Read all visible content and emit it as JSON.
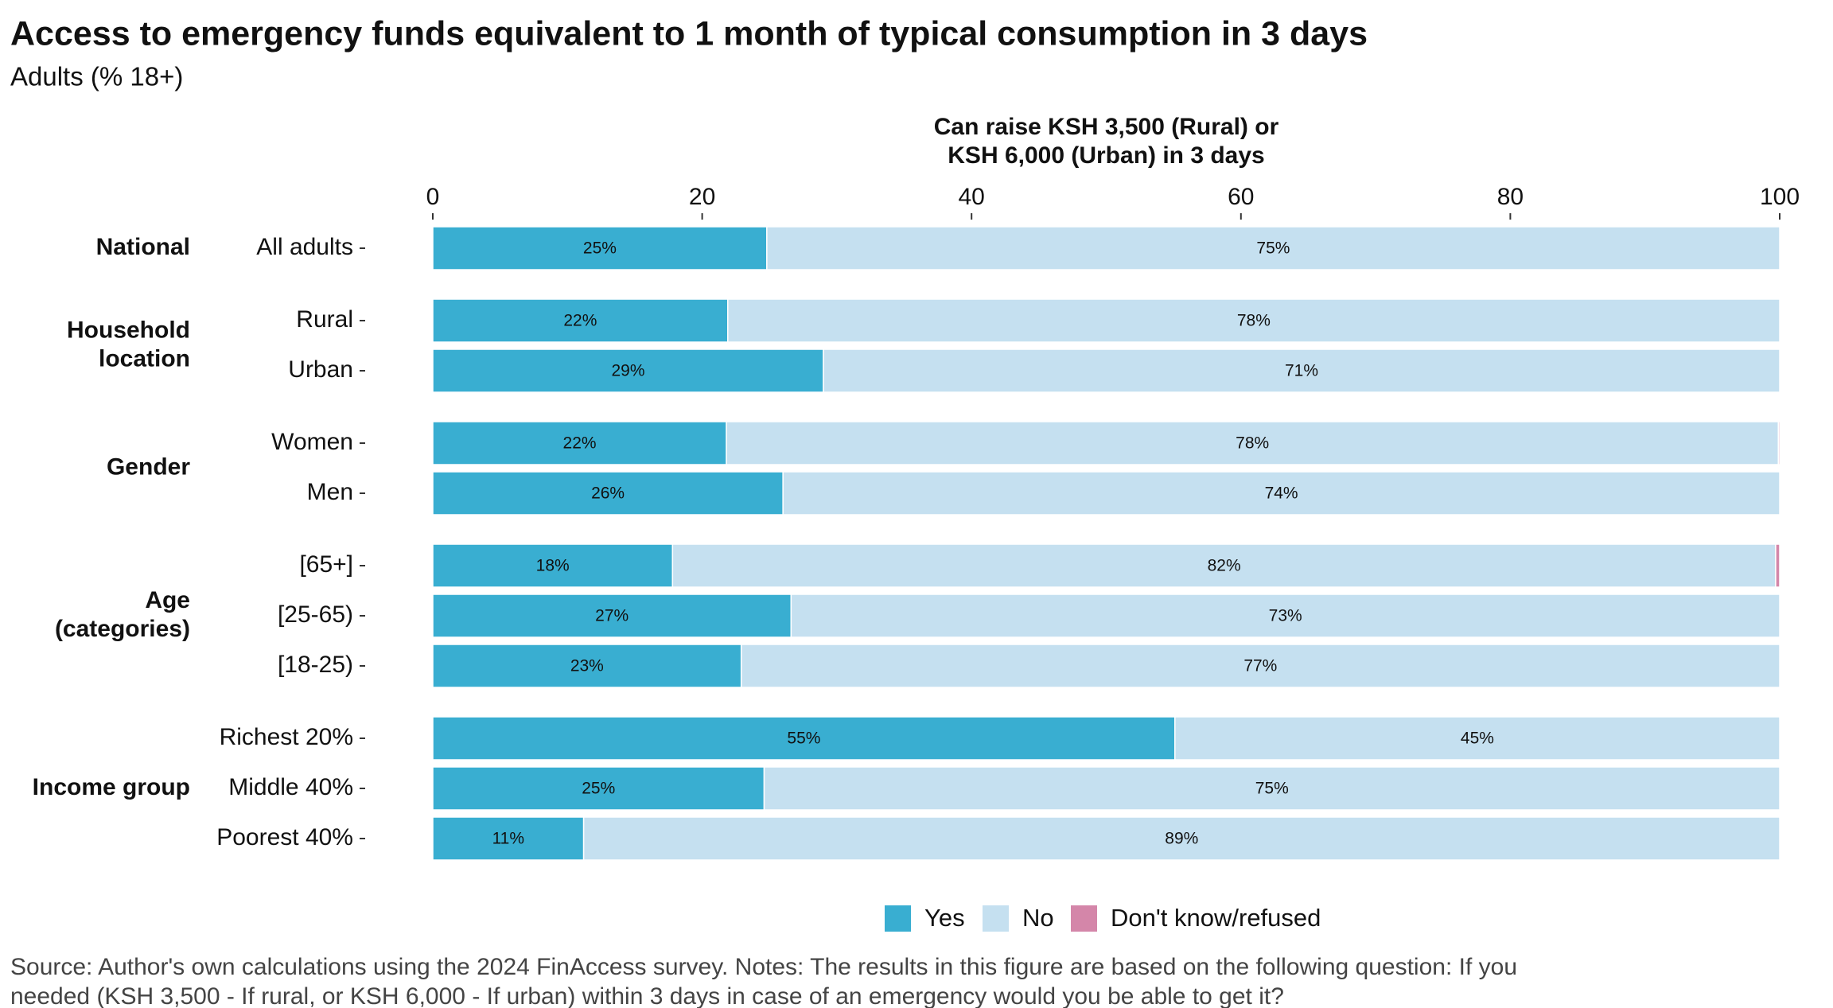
{
  "chart_data": {
    "type": "stacked-bar-horizontal",
    "title": "Access to emergency funds equivalent to 1 month of typical consumption in 3 days",
    "subtitle": "Adults (% 18+)",
    "xlabel": [
      "Can raise KSH 3,500 (Rural) or",
      "KSH 6,000 (Urban) in 3 days"
    ],
    "groups": [
      {
        "name": [
          "National"
        ],
        "categories": [
          "All adults"
        ]
      },
      {
        "name": [
          "Household",
          "location"
        ],
        "categories": [
          "Rural",
          "Urban"
        ]
      },
      {
        "name": [
          "Gender"
        ],
        "categories": [
          "Women",
          "Men"
        ]
      },
      {
        "name": [
          "Age",
          "(categories)"
        ],
        "categories": [
          "[65+]",
          "[25-65)",
          "[18-25)"
        ]
      },
      {
        "name": [
          "Income group"
        ],
        "categories": [
          "Richest 20%",
          "Middle 40%",
          "Poorest 40%"
        ]
      }
    ],
    "series": [
      {
        "name": "Yes",
        "color": "#39aed1",
        "values": [
          24.8,
          21.9,
          29.0,
          21.8,
          26.0,
          17.8,
          26.6,
          22.9,
          55.1,
          24.6,
          11.2
        ],
        "value_labels": [
          "25%",
          "22%",
          "29%",
          "22%",
          "26%",
          "18%",
          "27%",
          "23%",
          "55%",
          "25%",
          "11%"
        ]
      },
      {
        "name": "No",
        "color": "#c5e0f0",
        "values": [
          75.2,
          78.1,
          71.0,
          78.1,
          74.0,
          81.9,
          73.4,
          77.1,
          44.9,
          75.4,
          88.8
        ],
        "value_labels": [
          "75%",
          "78%",
          "71%",
          "78%",
          "74%",
          "82%",
          "73%",
          "77%",
          "45%",
          "75%",
          "89%"
        ]
      },
      {
        "name": "Don't know/refused",
        "color": "#d486a9",
        "values": [
          0,
          0,
          0,
          0.1,
          0,
          0.3,
          0,
          0,
          0,
          0,
          0
        ]
      }
    ],
    "xlim": [
      0,
      100
    ],
    "xticks": [
      0,
      20,
      40,
      60,
      80,
      100
    ],
    "legend": "bottom",
    "note": [
      "Source: Author's own calculations using the 2024 FinAccess survey. Notes: The results in this figure are based on the following question: If you",
      "needed (KSH 3,500 - If rural, or KSH 6,000 - If urban) within 3 days in case of an emergency would you be able to get it?"
    ]
  }
}
